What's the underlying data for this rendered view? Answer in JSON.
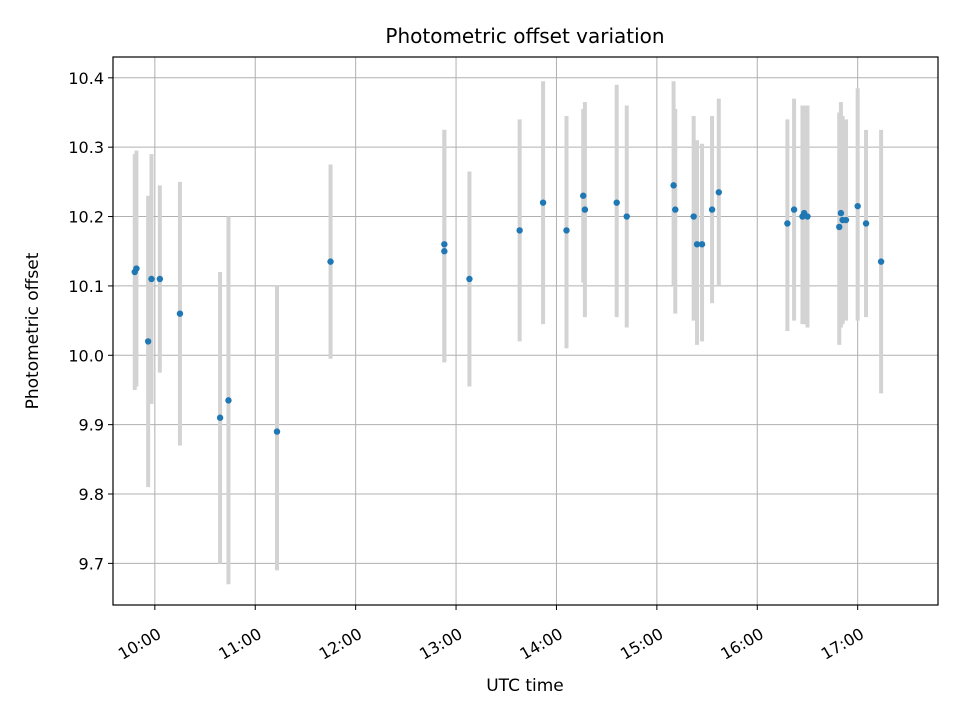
{
  "chart_data": {
    "type": "scatter",
    "title": "Photometric offset variation",
    "xlabel": "UTC time",
    "ylabel": "Photometric offset",
    "x_ticks": [
      "10:00",
      "11:00",
      "12:00",
      "13:00",
      "14:00",
      "15:00",
      "16:00",
      "17:00"
    ],
    "y_ticks": [
      "9.7",
      "9.8",
      "9.9",
      "10.0",
      "10.1",
      "10.2",
      "10.3",
      "10.4"
    ],
    "xlim": [
      "09:35",
      "17:48"
    ],
    "ylim": [
      9.64,
      10.43
    ],
    "grid": true,
    "colors": {
      "points": "#1f77b4",
      "errorbars": "#d3d3d3",
      "grid": "#b0b0b0"
    },
    "series": [
      {
        "points": [
          {
            "x": "09:48",
            "y": 10.12,
            "lo": 9.95,
            "hi": 10.29
          },
          {
            "x": "09:49",
            "y": 10.125,
            "lo": 9.955,
            "hi": 10.295
          },
          {
            "x": "09:56",
            "y": 10.02,
            "lo": 9.81,
            "hi": 10.23
          },
          {
            "x": "09:58",
            "y": 10.11,
            "lo": 9.93,
            "hi": 10.29
          },
          {
            "x": "10:03",
            "y": 10.11,
            "lo": 9.975,
            "hi": 10.245
          },
          {
            "x": "10:15",
            "y": 10.06,
            "lo": 9.87,
            "hi": 10.25
          },
          {
            "x": "10:39",
            "y": 9.91,
            "lo": 9.7,
            "hi": 10.12
          },
          {
            "x": "10:44",
            "y": 9.935,
            "lo": 9.67,
            "hi": 10.2
          },
          {
            "x": "11:13",
            "y": 9.89,
            "lo": 9.69,
            "hi": 10.1
          },
          {
            "x": "11:45",
            "y": 10.135,
            "lo": 9.995,
            "hi": 10.275
          },
          {
            "x": "12:53",
            "y": 10.15,
            "lo": 9.99,
            "hi": 10.325
          },
          {
            "x": "12:53",
            "y": 10.16,
            "lo": 9.99,
            "hi": 10.325
          },
          {
            "x": "13:08",
            "y": 10.11,
            "lo": 9.955,
            "hi": 10.265
          },
          {
            "x": "13:38",
            "y": 10.18,
            "lo": 10.02,
            "hi": 10.34
          },
          {
            "x": "13:52",
            "y": 10.22,
            "lo": 10.045,
            "hi": 10.395
          },
          {
            "x": "14:06",
            "y": 10.18,
            "lo": 10.01,
            "hi": 10.345
          },
          {
            "x": "14:16",
            "y": 10.23,
            "lo": 10.105,
            "hi": 10.355
          },
          {
            "x": "14:17",
            "y": 10.21,
            "lo": 10.055,
            "hi": 10.365
          },
          {
            "x": "14:36",
            "y": 10.22,
            "lo": 10.055,
            "hi": 10.39
          },
          {
            "x": "14:42",
            "y": 10.2,
            "lo": 10.04,
            "hi": 10.36
          },
          {
            "x": "15:10",
            "y": 10.245,
            "lo": 10.1,
            "hi": 10.395
          },
          {
            "x": "15:11",
            "y": 10.21,
            "lo": 10.06,
            "hi": 10.355
          },
          {
            "x": "15:22",
            "y": 10.2,
            "lo": 10.05,
            "hi": 10.345
          },
          {
            "x": "15:24",
            "y": 10.16,
            "lo": 10.015,
            "hi": 10.31
          },
          {
            "x": "15:27",
            "y": 10.16,
            "lo": 10.02,
            "hi": 10.305
          },
          {
            "x": "15:33",
            "y": 10.21,
            "lo": 10.075,
            "hi": 10.345
          },
          {
            "x": "15:37",
            "y": 10.235,
            "lo": 10.1,
            "hi": 10.37
          },
          {
            "x": "16:18",
            "y": 10.19,
            "lo": 10.035,
            "hi": 10.34
          },
          {
            "x": "16:22",
            "y": 10.21,
            "lo": 10.05,
            "hi": 10.37
          },
          {
            "x": "16:27",
            "y": 10.2,
            "lo": 10.045,
            "hi": 10.36
          },
          {
            "x": "16:28",
            "y": 10.205,
            "lo": 10.045,
            "hi": 10.36
          },
          {
            "x": "16:30",
            "y": 10.2,
            "lo": 10.04,
            "hi": 10.36
          },
          {
            "x": "16:49",
            "y": 10.185,
            "lo": 10.015,
            "hi": 10.35
          },
          {
            "x": "16:50",
            "y": 10.205,
            "lo": 10.04,
            "hi": 10.365
          },
          {
            "x": "16:51",
            "y": 10.195,
            "lo": 10.045,
            "hi": 10.345
          },
          {
            "x": "16:53",
            "y": 10.195,
            "lo": 10.05,
            "hi": 10.34
          },
          {
            "x": "17:00",
            "y": 10.215,
            "lo": 10.05,
            "hi": 10.385
          },
          {
            "x": "17:05",
            "y": 10.19,
            "lo": 10.055,
            "hi": 10.325
          },
          {
            "x": "17:14",
            "y": 10.135,
            "lo": 9.945,
            "hi": 10.325
          }
        ]
      }
    ]
  }
}
